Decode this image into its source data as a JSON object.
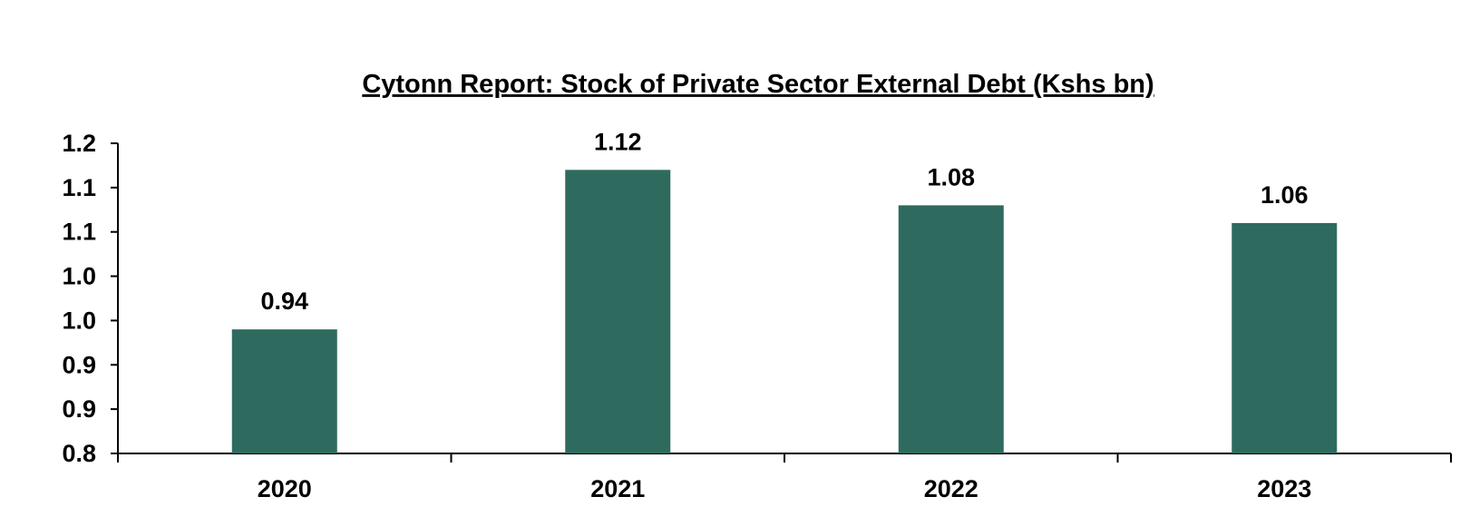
{
  "chart_data": {
    "type": "bar",
    "title": "Cytonn Report: Stock of Private Sector External Debt (Kshs bn)",
    "categories": [
      "2020",
      "2021",
      "2022",
      "2023"
    ],
    "values": [
      0.94,
      1.12,
      1.08,
      1.06
    ],
    "data_labels": [
      "0.94",
      "1.12",
      "1.08",
      "1.06"
    ],
    "y_ticks": [
      {
        "value": 0.8,
        "label": "0.8"
      },
      {
        "value": 0.85,
        "label": "0.9"
      },
      {
        "value": 0.9,
        "label": "0.9"
      },
      {
        "value": 0.95,
        "label": "1.0"
      },
      {
        "value": 1.0,
        "label": "1.0"
      },
      {
        "value": 1.05,
        "label": "1.1"
      },
      {
        "value": 1.1,
        "label": "1.1"
      },
      {
        "value": 1.15,
        "label": "1.2"
      }
    ],
    "ylim": [
      0.8,
      1.15
    ],
    "xlabel": "",
    "ylabel": "",
    "grid": false,
    "legend": "none",
    "bar_color": "#2e6b5e"
  }
}
